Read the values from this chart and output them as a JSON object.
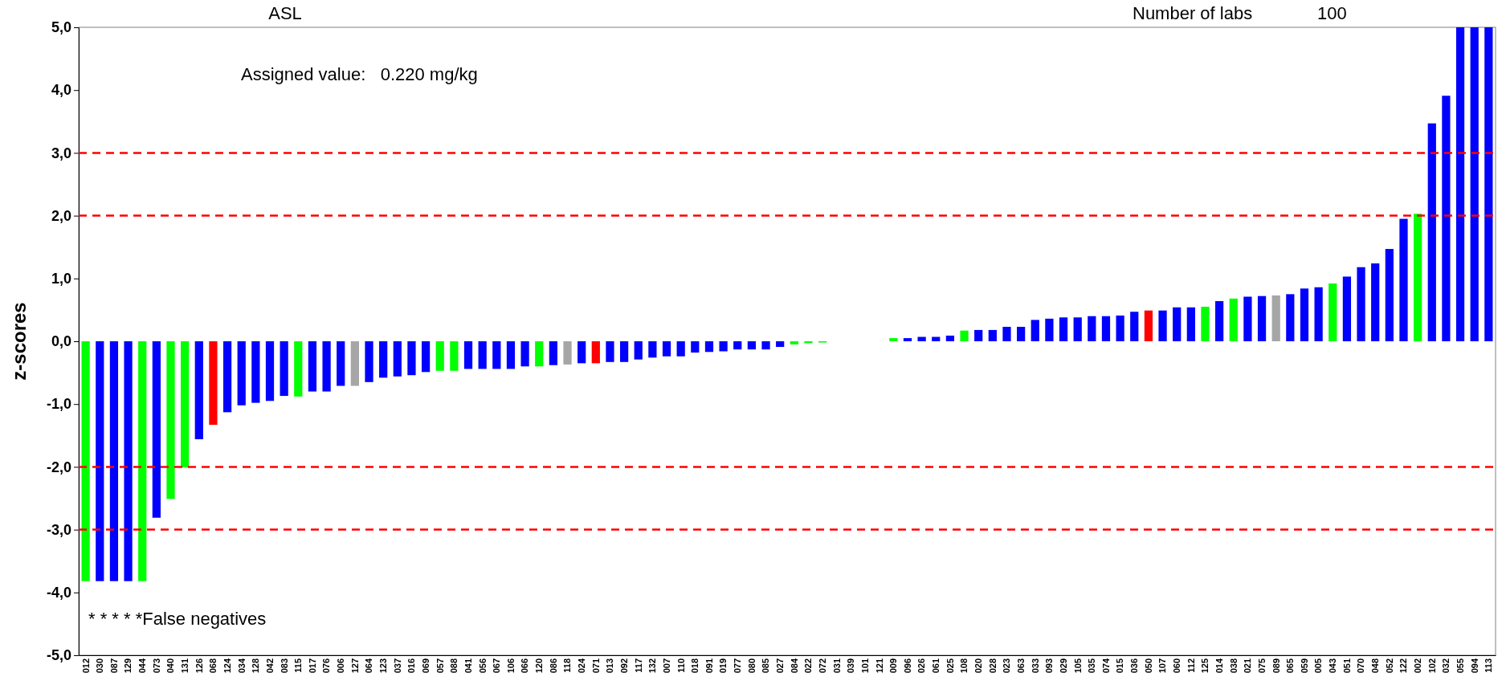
{
  "chart_data": {
    "type": "bar",
    "title": "ASL",
    "ylabel": "z-scores",
    "annotations": [
      "Number of labs",
      "100",
      "Assigned value:   0.220 mg/kg",
      "* * * * *False negatives"
    ],
    "categories": [
      "012",
      "030",
      "087",
      "129",
      "044",
      "073",
      "040",
      "131",
      "126",
      "068",
      "124",
      "034",
      "128",
      "042",
      "083",
      "115",
      "017",
      "076",
      "006",
      "127",
      "064",
      "123",
      "037",
      "016",
      "069",
      "057",
      "088",
      "041",
      "056",
      "067",
      "106",
      "066",
      "120",
      "086",
      "118",
      "024",
      "071",
      "013",
      "092",
      "117",
      "132",
      "007",
      "110",
      "018",
      "091",
      "019",
      "077",
      "080",
      "085",
      "027",
      "084",
      "022",
      "072",
      "031",
      "039",
      "101",
      "121",
      "009",
      "096",
      "026",
      "061",
      "025",
      "108",
      "020",
      "028",
      "023",
      "063",
      "033",
      "093",
      "029",
      "105",
      "035",
      "074",
      "015",
      "036",
      "050",
      "107",
      "060",
      "112",
      "125",
      "014",
      "038",
      "021",
      "075",
      "089",
      "065",
      "059",
      "005",
      "043",
      "051",
      "070",
      "048",
      "052",
      "122",
      "002",
      "102",
      "032",
      "055",
      "094",
      "113"
    ],
    "values": [
      -3.82,
      -3.82,
      -3.82,
      -3.82,
      -3.82,
      -2.81,
      -2.51,
      -2.01,
      -1.56,
      -1.33,
      -1.13,
      -1.02,
      -0.98,
      -0.95,
      -0.87,
      -0.88,
      -0.8,
      -0.8,
      -0.71,
      -0.71,
      -0.65,
      -0.58,
      -0.56,
      -0.54,
      -0.49,
      -0.47,
      -0.47,
      -0.44,
      -0.44,
      -0.44,
      -0.44,
      -0.4,
      -0.4,
      -0.38,
      -0.37,
      -0.35,
      -0.35,
      -0.33,
      -0.33,
      -0.29,
      -0.26,
      -0.24,
      -0.24,
      -0.18,
      -0.17,
      -0.16,
      -0.13,
      -0.13,
      -0.13,
      -0.09,
      -0.05,
      -0.03,
      -0.02,
      null,
      null,
      null,
      null,
      0.05,
      0.05,
      0.07,
      0.07,
      0.09,
      0.17,
      0.18,
      0.18,
      0.23,
      0.23,
      0.34,
      0.36,
      0.38,
      0.38,
      0.4,
      0.4,
      0.41,
      0.47,
      0.49,
      0.49,
      0.54,
      0.54,
      0.55,
      0.64,
      0.68,
      0.71,
      0.72,
      0.73,
      0.75,
      0.84,
      0.86,
      0.92,
      1.03,
      1.18,
      1.24,
      1.47,
      1.95,
      2.03,
      3.47,
      3.91,
      5,
      5,
      5
    ],
    "colors": [
      "#00ff00",
      "#0000ff",
      "#0000ff",
      "#0000ff",
      "#00ff00",
      "#0000ff",
      "#00ff00",
      "#00ff00",
      "#0000ff",
      "#ff0000",
      "#0000ff",
      "#0000ff",
      "#0000ff",
      "#0000ff",
      "#0000ff",
      "#00ff00",
      "#0000ff",
      "#0000ff",
      "#0000ff",
      "#a6a6a6",
      "#0000ff",
      "#0000ff",
      "#0000ff",
      "#0000ff",
      "#0000ff",
      "#00ff00",
      "#00ff00",
      "#0000ff",
      "#0000ff",
      "#0000ff",
      "#0000ff",
      "#0000ff",
      "#00ff00",
      "#0000ff",
      "#a6a6a6",
      "#0000ff",
      "#ff0000",
      "#0000ff",
      "#0000ff",
      "#0000ff",
      "#0000ff",
      "#0000ff",
      "#0000ff",
      "#0000ff",
      "#0000ff",
      "#0000ff",
      "#0000ff",
      "#0000ff",
      "#0000ff",
      "#0000ff",
      "#00ff00",
      "#00ff00",
      "#00ff00",
      null,
      null,
      null,
      null,
      "#00ff00",
      "#0000ff",
      "#0000ff",
      "#0000ff",
      "#0000ff",
      "#00ff00",
      "#0000ff",
      "#0000ff",
      "#0000ff",
      "#0000ff",
      "#0000ff",
      "#0000ff",
      "#0000ff",
      "#0000ff",
      "#0000ff",
      "#0000ff",
      "#0000ff",
      "#0000ff",
      "#ff0000",
      "#0000ff",
      "#0000ff",
      "#0000ff",
      "#00ff00",
      "#0000ff",
      "#00ff00",
      "#0000ff",
      "#0000ff",
      "#a6a6a6",
      "#0000ff",
      "#0000ff",
      "#0000ff",
      "#00ff00",
      "#0000ff",
      "#0000ff",
      "#0000ff",
      "#0000ff",
      "#0000ff",
      "#00ff00",
      "#0000ff",
      "#0000ff",
      "#0000ff",
      "#0000ff",
      "#0000ff"
    ],
    "ylim": [
      -5,
      5
    ],
    "yticks": [
      {
        "value": -5,
        "label": "-5,0"
      },
      {
        "value": -4,
        "label": "-4,0"
      },
      {
        "value": -3,
        "label": "-3,0"
      },
      {
        "value": -2,
        "label": "-2,0"
      },
      {
        "value": -1,
        "label": "-1,0"
      },
      {
        "value": 0,
        "label": "0,0"
      },
      {
        "value": 1,
        "label": "1,0"
      },
      {
        "value": 2,
        "label": "2,0"
      },
      {
        "value": 3,
        "label": "3,0"
      },
      {
        "value": 4,
        "label": "4,0"
      },
      {
        "value": 5,
        "label": "5,0"
      }
    ],
    "ref_lines": [
      {
        "axis": "y",
        "value": 3,
        "color": "#ff0000",
        "line_style": "dashed"
      },
      {
        "axis": "y",
        "value": 2,
        "color": "#ff0000",
        "line_style": "dashed"
      },
      {
        "axis": "y",
        "value": -2,
        "color": "#ff0000",
        "line_style": "dashed"
      },
      {
        "axis": "y",
        "value": -3,
        "color": "#ff0000",
        "line_style": "dashed"
      }
    ],
    "grid": false
  }
}
